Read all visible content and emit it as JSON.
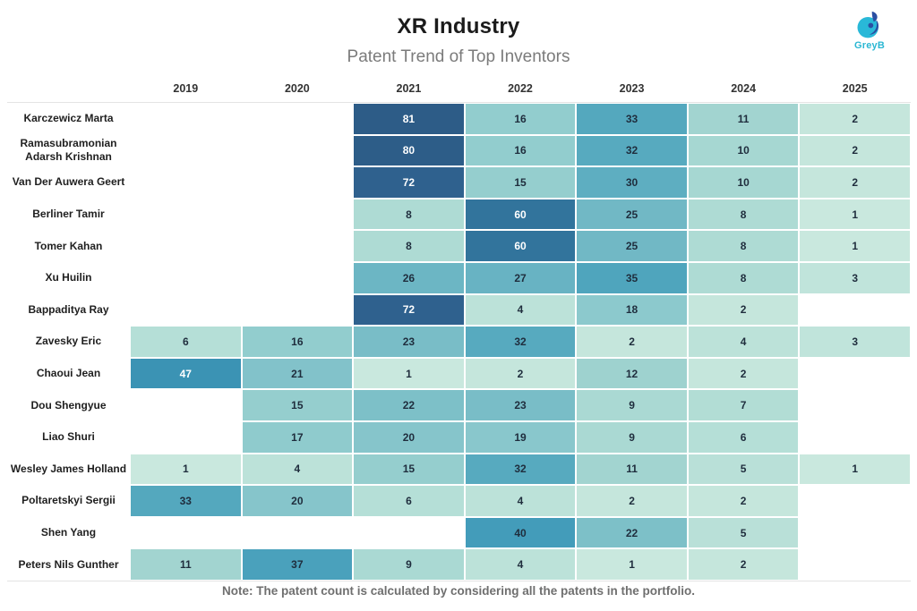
{
  "header": {
    "title": "XR Industry",
    "subtitle": "Patent Trend of Top Inventors",
    "logo_text": "GreyB"
  },
  "footer": {
    "note": "Note: The patent count is calculated by considering all the patents in the portfolio."
  },
  "colors": {
    "accent_cyan": "#29b8d8",
    "logo_dark_blue": "#2b4fa2",
    "title_text": "#1b1b1b",
    "subtitle_text": "#7b7b7b",
    "year_header_text": "#333333",
    "row_label_text": "#1f1f1f",
    "cell_dark_text": "#1f2d3d",
    "cell_light_text": "#ffffff",
    "grid_line": "#e4e4e4",
    "note_text": "#6f6f6f"
  },
  "chart_data": {
    "type": "heatmap",
    "title": "XR Industry",
    "subtitle": "Patent Trend of Top Inventors",
    "x": [
      "2019",
      "2020",
      "2021",
      "2022",
      "2023",
      "2024",
      "2025"
    ],
    "rows": [
      {
        "name": "Karczewicz Marta",
        "values": [
          null,
          null,
          81,
          16,
          33,
          11,
          2
        ]
      },
      {
        "name": "Ramasubramonian Adarsh Krishnan",
        "values": [
          null,
          null,
          80,
          16,
          32,
          10,
          2
        ]
      },
      {
        "name": "Van Der Auwera Geert",
        "values": [
          null,
          null,
          72,
          15,
          30,
          10,
          2
        ]
      },
      {
        "name": "Berliner Tamir",
        "values": [
          null,
          null,
          8,
          60,
          25,
          8,
          1
        ]
      },
      {
        "name": "Tomer Kahan",
        "values": [
          null,
          null,
          8,
          60,
          25,
          8,
          1
        ]
      },
      {
        "name": "Xu Huilin",
        "values": [
          null,
          null,
          26,
          27,
          35,
          8,
          3
        ]
      },
      {
        "name": "Bappaditya Ray",
        "values": [
          null,
          null,
          72,
          4,
          18,
          2,
          null
        ]
      },
      {
        "name": "Zavesky Eric",
        "values": [
          6,
          16,
          23,
          32,
          2,
          4,
          3
        ]
      },
      {
        "name": "Chaoui Jean",
        "values": [
          47,
          21,
          1,
          2,
          12,
          2,
          null
        ]
      },
      {
        "name": "Dou Shengyue",
        "values": [
          null,
          15,
          22,
          23,
          9,
          7,
          null
        ]
      },
      {
        "name": "Liao Shuri",
        "values": [
          null,
          17,
          20,
          19,
          9,
          6,
          null
        ]
      },
      {
        "name": "Wesley James Holland",
        "values": [
          1,
          4,
          15,
          32,
          11,
          5,
          1
        ]
      },
      {
        "name": "Poltaretskyi Sergii",
        "values": [
          33,
          20,
          6,
          4,
          2,
          2,
          null
        ]
      },
      {
        "name": "Shen Yang",
        "values": [
          null,
          null,
          null,
          40,
          22,
          5,
          null
        ]
      },
      {
        "name": "Peters Nils Gunther",
        "values": [
          11,
          37,
          9,
          4,
          1,
          2,
          null
        ]
      }
    ],
    "color_scale": {
      "stops": [
        [
          1,
          "#c9e8de"
        ],
        [
          4,
          "#bce2d9"
        ],
        [
          8,
          "#aedbd4"
        ],
        [
          12,
          "#9ed2cf"
        ],
        [
          16,
          "#92cdce"
        ],
        [
          20,
          "#86c5cb"
        ],
        [
          23,
          "#79bdc7"
        ],
        [
          27,
          "#68b3c3"
        ],
        [
          33,
          "#54a8be"
        ],
        [
          40,
          "#439cba"
        ],
        [
          47,
          "#3b93b4"
        ],
        [
          60,
          "#32749c"
        ],
        [
          72,
          "#2f618e"
        ],
        [
          81,
          "#2d5c87"
        ]
      ],
      "white_text_threshold": 47
    },
    "legend": false,
    "grid": false,
    "empty_cell_color": "#ffffff"
  }
}
